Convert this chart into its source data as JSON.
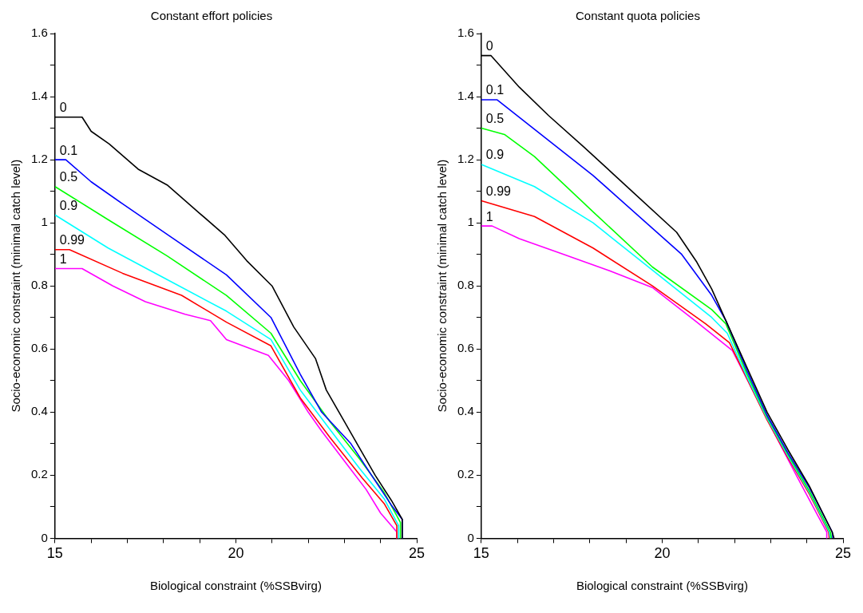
{
  "chart_data": [
    {
      "type": "line",
      "title": "Constant effort policies",
      "xlabel": "Biological constraint (%SSBvirg)",
      "ylabel": "Socio-economic constraint (minimal catch level)",
      "xlim": [
        15,
        25
      ],
      "ylim": [
        0,
        1.6
      ],
      "xticks": [
        15,
        {
          "value": 16,
          "label": null
        },
        {
          "value": 17,
          "label": null
        },
        {
          "value": 18,
          "label": null
        },
        {
          "value": 19,
          "label": null
        },
        20,
        {
          "value": 21,
          "label": null
        },
        {
          "value": 22,
          "label": null
        },
        {
          "value": 23,
          "label": null
        },
        {
          "value": 24,
          "label": null
        },
        25
      ],
      "yticks": [
        0,
        {
          "value": 0.1,
          "label": null
        },
        0.2,
        {
          "value": 0.3,
          "label": null
        },
        0.4,
        {
          "value": 0.5,
          "label": null
        },
        0.6,
        {
          "value": 0.7,
          "label": null
        },
        0.8,
        {
          "value": 0.9,
          "label": null
        },
        1,
        {
          "value": 1.1,
          "label": null
        },
        1.2,
        {
          "value": 1.3,
          "label": null
        },
        1.4,
        {
          "value": 1.5,
          "label": null
        },
        1.6
      ],
      "grid": false,
      "legend": false,
      "marker": "none",
      "line_style": "solid",
      "series": [
        {
          "name": "0",
          "color": "#000000",
          "x": [
            15,
            15.75,
            16,
            16.5,
            17.3,
            18.1,
            19,
            19.7,
            20.3,
            21,
            21.6,
            22.2,
            22.5,
            23,
            23.4,
            23.85,
            24.3,
            24.6,
            24.6
          ],
          "values": [
            1.335,
            1.335,
            1.29,
            1.25,
            1.17,
            1.12,
            1.03,
            0.96,
            0.88,
            0.8,
            0.67,
            0.57,
            0.47,
            0.37,
            0.29,
            0.2,
            0.12,
            0.06,
            0
          ]
        },
        {
          "name": "0.1",
          "color": "#0000ff",
          "x": [
            15,
            15.3,
            16,
            16.87,
            18.27,
            19.74,
            20.97,
            21.78,
            22.37,
            23.18,
            23.75,
            24.3,
            24.6,
            24.6
          ],
          "values": [
            1.2,
            1.2,
            1.13,
            1.06,
            0.95,
            0.835,
            0.7,
            0.52,
            0.4,
            0.3,
            0.2,
            0.105,
            0.06,
            0
          ]
        },
        {
          "name": "0.5",
          "color": "#00ff00",
          "x": [
            15,
            16.47,
            18.1,
            19.74,
            20.97,
            21.78,
            22.6,
            23.43,
            24.1,
            24.55,
            24.55
          ],
          "values": [
            1.115,
            1.01,
            0.895,
            0.77,
            0.65,
            0.5,
            0.37,
            0.25,
            0.145,
            0.05,
            0
          ]
        },
        {
          "name": "0.9",
          "color": "#00ffff",
          "x": [
            15,
            16.47,
            18.1,
            19.74,
            20.97,
            21.78,
            22.6,
            23.43,
            24.1,
            24.5,
            24.5
          ],
          "values": [
            1.025,
            0.92,
            0.82,
            0.72,
            0.63,
            0.47,
            0.345,
            0.22,
            0.125,
            0.04,
            0
          ]
        },
        {
          "name": "0.99",
          "color": "#ff0000",
          "x": [
            15,
            15.4,
            16.87,
            18.5,
            19.74,
            20.97,
            21.78,
            22.6,
            23.5,
            24.1,
            24.45,
            24.45
          ],
          "values": [
            0.915,
            0.915,
            0.84,
            0.77,
            0.685,
            0.61,
            0.445,
            0.32,
            0.19,
            0.11,
            0.04,
            0
          ]
        },
        {
          "name": "1",
          "color": "#ff00ff",
          "x": [
            15,
            15.75,
            16.6,
            17.5,
            18.6,
            19.3,
            19.74,
            20.9,
            21.46,
            22,
            22.37,
            23.1,
            23.6,
            24,
            24.45,
            24.45
          ],
          "values": [
            0.855,
            0.855,
            0.8,
            0.75,
            0.71,
            0.69,
            0.63,
            0.58,
            0.5,
            0.4,
            0.34,
            0.23,
            0.155,
            0.08,
            0.02,
            0
          ]
        }
      ]
    },
    {
      "type": "line",
      "title": "Constant quota policies",
      "xlabel": "Biological constraint (%SSBvirg)",
      "ylabel": "Socio-economic constraint (minimal catch level)",
      "xlim": [
        15,
        25
      ],
      "ylim": [
        0,
        1.6
      ],
      "xticks": [
        15,
        {
          "value": 16,
          "label": null
        },
        {
          "value": 17,
          "label": null
        },
        {
          "value": 18,
          "label": null
        },
        {
          "value": 19,
          "label": null
        },
        20,
        {
          "value": 21,
          "label": null
        },
        {
          "value": 22,
          "label": null
        },
        {
          "value": 23,
          "label": null
        },
        {
          "value": 24,
          "label": null
        },
        25
      ],
      "yticks": [
        0,
        {
          "value": 0.1,
          "label": null
        },
        0.2,
        {
          "value": 0.3,
          "label": null
        },
        0.4,
        {
          "value": 0.5,
          "label": null
        },
        0.6,
        {
          "value": 0.7,
          "label": null
        },
        0.8,
        {
          "value": 0.9,
          "label": null
        },
        1,
        {
          "value": 1.1,
          "label": null
        },
        1.2,
        {
          "value": 1.3,
          "label": null
        },
        1.4,
        {
          "value": 1.5,
          "label": null
        },
        1.6
      ],
      "grid": false,
      "legend": false,
      "marker": "none",
      "line_style": "solid",
      "series": [
        {
          "name": "0",
          "color": "#000000",
          "x": [
            15,
            15.27,
            16.05,
            16.86,
            17.84,
            19.07,
            20.4,
            20.96,
            21.37,
            21.76,
            22.35,
            22.9,
            23.48,
            24.07,
            24.7,
            24.75
          ],
          "values": [
            1.53,
            1.53,
            1.43,
            1.34,
            1.24,
            1.11,
            0.97,
            0.875,
            0.79,
            0.69,
            0.54,
            0.4,
            0.28,
            0.165,
            0.02,
            0
          ]
        },
        {
          "name": "0.1",
          "color": "#0000ff",
          "x": [
            15,
            15.44,
            18.09,
            20.54,
            21.37,
            21.76,
            22.35,
            22.9,
            23.48,
            24.07,
            24.7,
            24.72
          ],
          "values": [
            1.39,
            1.39,
            1.15,
            0.9,
            0.77,
            0.69,
            0.53,
            0.39,
            0.27,
            0.16,
            0.02,
            0
          ]
        },
        {
          "name": "0.5",
          "color": "#00ff00",
          "x": [
            15,
            15.64,
            16.47,
            18.09,
            19.73,
            21.37,
            21.76,
            22.35,
            22.9,
            23.48,
            24.07,
            24.65,
            24.68
          ],
          "values": [
            1.3,
            1.28,
            1.21,
            1.035,
            0.86,
            0.725,
            0.68,
            0.52,
            0.385,
            0.265,
            0.15,
            0.02,
            0
          ]
        },
        {
          "name": "0.9",
          "color": "#00ffff",
          "x": [
            15,
            16.47,
            18.09,
            19.73,
            21.37,
            21.8,
            22.35,
            22.9,
            23.48,
            24.07,
            24.62,
            24.65
          ],
          "values": [
            1.185,
            1.115,
            1.0,
            0.85,
            0.7,
            0.65,
            0.51,
            0.38,
            0.26,
            0.145,
            0.02,
            0
          ]
        },
        {
          "name": "0.99",
          "color": "#ff0000",
          "x": [
            15,
            16.47,
            18.09,
            19.73,
            21.2,
            21.86,
            22.35,
            22.9,
            23.48,
            24.07,
            24.6,
            24.62
          ],
          "values": [
            1.07,
            1.02,
            0.92,
            0.8,
            0.68,
            0.62,
            0.505,
            0.375,
            0.255,
            0.14,
            0.02,
            0
          ]
        },
        {
          "name": "1",
          "color": "#ff00ff",
          "x": [
            15,
            15.3,
            16.05,
            17.28,
            18.5,
            19.73,
            20.96,
            21.94,
            22.5,
            23.16,
            23.73,
            24.31,
            24.55,
            24.55
          ],
          "values": [
            0.99,
            0.99,
            0.95,
            0.9,
            0.85,
            0.795,
            0.685,
            0.595,
            0.47,
            0.32,
            0.195,
            0.07,
            0.02,
            0
          ]
        }
      ]
    }
  ]
}
